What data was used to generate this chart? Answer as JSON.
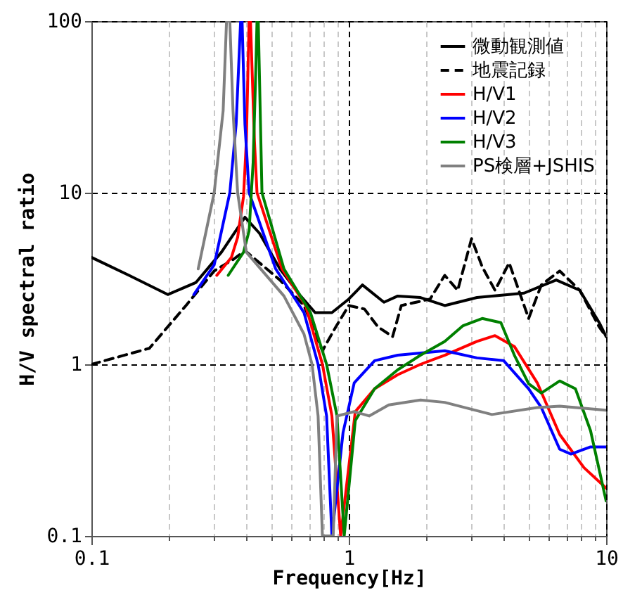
{
  "chart_data": {
    "type": "line",
    "xlabel": "Frequency[Hz]",
    "ylabel": "H/V spectral ratio",
    "log": "xy",
    "xlim": [
      0.1,
      10
    ],
    "ylim": [
      0.1,
      100
    ],
    "xticks": [
      0.1,
      {
        "value": 0.2,
        "label": null
      },
      {
        "value": 0.3,
        "label": null
      },
      {
        "value": 0.4,
        "label": null
      },
      {
        "value": 0.5,
        "label": null
      },
      {
        "value": 0.6,
        "label": null
      },
      {
        "value": 0.7,
        "label": null
      },
      {
        "value": 0.8,
        "label": null
      },
      {
        "value": 0.9,
        "label": null
      },
      1,
      {
        "value": 2,
        "label": null
      },
      {
        "value": 3,
        "label": null
      },
      {
        "value": 4,
        "label": null
      },
      {
        "value": 5,
        "label": null
      },
      {
        "value": 6,
        "label": null
      },
      {
        "value": 7,
        "label": null
      },
      {
        "value": 8,
        "label": null
      },
      {
        "value": 9,
        "label": null
      },
      10
    ],
    "yticks": [
      0.1,
      1,
      10,
      100
    ],
    "grid": true,
    "legend": "top right",
    "marker": "none",
    "series": [
      {
        "name": "微動観測値",
        "color": "#000000",
        "line_style": "solid",
        "x": [
          0.1,
          0.14,
          0.198,
          0.255,
          0.32,
          0.395,
          0.45,
          0.54,
          0.65,
          0.74,
          0.86,
          1.0,
          1.13,
          1.37,
          1.55,
          1.9,
          2.36,
          3.15,
          4.8,
          6.4,
          7.9,
          9.4,
          10
        ],
        "values": [
          4.2,
          3.3,
          2.55,
          3.0,
          4.5,
          7.2,
          5.8,
          3.6,
          2.5,
          2.0,
          2.0,
          2.4,
          2.9,
          2.3,
          2.5,
          2.45,
          2.2,
          2.45,
          2.6,
          3.1,
          2.7,
          1.75,
          1.45
        ]
      },
      {
        "name": "地震記録",
        "color": "#000000",
        "line_style": "dashed",
        "x": [
          0.1,
          0.168,
          0.233,
          0.3,
          0.357,
          0.395,
          0.54,
          0.67,
          0.79,
          0.89,
          1.0,
          1.15,
          1.3,
          1.48,
          1.6,
          2.07,
          2.36,
          2.65,
          3.0,
          3.3,
          3.7,
          4.2,
          5.0,
          5.6,
          6.6,
          7.9,
          9.4,
          10
        ],
        "values": [
          1.0,
          1.24,
          2.2,
          3.5,
          4.1,
          4.6,
          3.1,
          2.2,
          1.2,
          1.65,
          2.2,
          2.1,
          1.65,
          1.45,
          2.2,
          2.4,
          3.3,
          2.7,
          5.4,
          3.7,
          2.7,
          3.9,
          1.85,
          2.9,
          3.5,
          2.7,
          1.65,
          1.45
        ]
      },
      {
        "name": "H/V1",
        "color": "#ff0000",
        "line_style": "solid",
        "x": [
          0.307,
          0.35,
          0.37,
          0.39,
          0.4,
          0.41,
          0.415,
          0.43,
          0.44,
          0.55,
          0.68,
          0.79,
          0.86,
          0.93,
          1.06,
          1.26,
          1.55,
          1.9,
          2.36,
          3.15,
          3.7,
          4.4,
          5.4,
          6.6,
          8.2,
          10
        ],
        "values": [
          3.3,
          4.2,
          5.5,
          9.5,
          20,
          100,
          100,
          20,
          10,
          3.6,
          2.2,
          1.0,
          0.5,
          0.1,
          0.53,
          0.72,
          0.87,
          1.0,
          1.13,
          1.36,
          1.47,
          1.27,
          0.78,
          0.39,
          0.25,
          0.19
        ]
      },
      {
        "name": "H/V2",
        "color": "#0000ff",
        "line_style": "solid",
        "x": [
          0.25,
          0.3,
          0.345,
          0.365,
          0.38,
          0.385,
          0.395,
          0.41,
          0.52,
          0.67,
          0.76,
          0.82,
          0.86,
          0.95,
          1.05,
          1.26,
          1.55,
          2.36,
          3.15,
          4.0,
          5.0,
          5.6,
          6.6,
          7.3,
          8.7,
          10
        ],
        "values": [
          2.55,
          3.8,
          10,
          25,
          100,
          100,
          25,
          10,
          3.6,
          2.0,
          1.0,
          0.5,
          0.1,
          0.4,
          0.78,
          1.05,
          1.13,
          1.2,
          1.09,
          1.05,
          0.72,
          0.56,
          0.32,
          0.3,
          0.33,
          0.33
        ]
      },
      {
        "name": "H/V3",
        "color": "#008000",
        "line_style": "solid",
        "x": [
          0.34,
          0.39,
          0.41,
          0.425,
          0.435,
          0.44,
          0.445,
          0.46,
          0.56,
          0.71,
          0.82,
          0.9,
          0.96,
          1.06,
          1.26,
          1.55,
          1.9,
          2.36,
          2.78,
          3.3,
          3.9,
          4.4,
          5.0,
          5.6,
          6.6,
          7.6,
          8.7,
          10
        ],
        "values": [
          3.3,
          4.5,
          6,
          15,
          50,
          100,
          100,
          10,
          3.6,
          2.0,
          1.0,
          0.5,
          0.1,
          0.47,
          0.72,
          0.93,
          1.13,
          1.36,
          1.68,
          1.85,
          1.75,
          1.13,
          0.77,
          0.68,
          0.8,
          0.72,
          0.41,
          0.16
        ]
      },
      {
        "name": "PS検層+JSHIS",
        "color": "#808080",
        "line_style": "solid",
        "x": [
          0.26,
          0.3,
          0.325,
          0.335,
          0.345,
          0.355,
          0.37,
          0.4,
          0.56,
          0.67,
          0.72,
          0.76,
          0.79,
          0.87,
          0.9,
          1.05,
          1.2,
          1.43,
          1.9,
          2.36,
          3.6,
          5.4,
          6.6,
          10
        ],
        "values": [
          3.6,
          10,
          30,
          100,
          100,
          30,
          10,
          4.5,
          2.5,
          1.5,
          1.0,
          0.5,
          0.1,
          0.1,
          0.5,
          0.53,
          0.5,
          0.58,
          0.62,
          0.6,
          0.51,
          0.56,
          0.57,
          0.54
        ]
      }
    ]
  }
}
